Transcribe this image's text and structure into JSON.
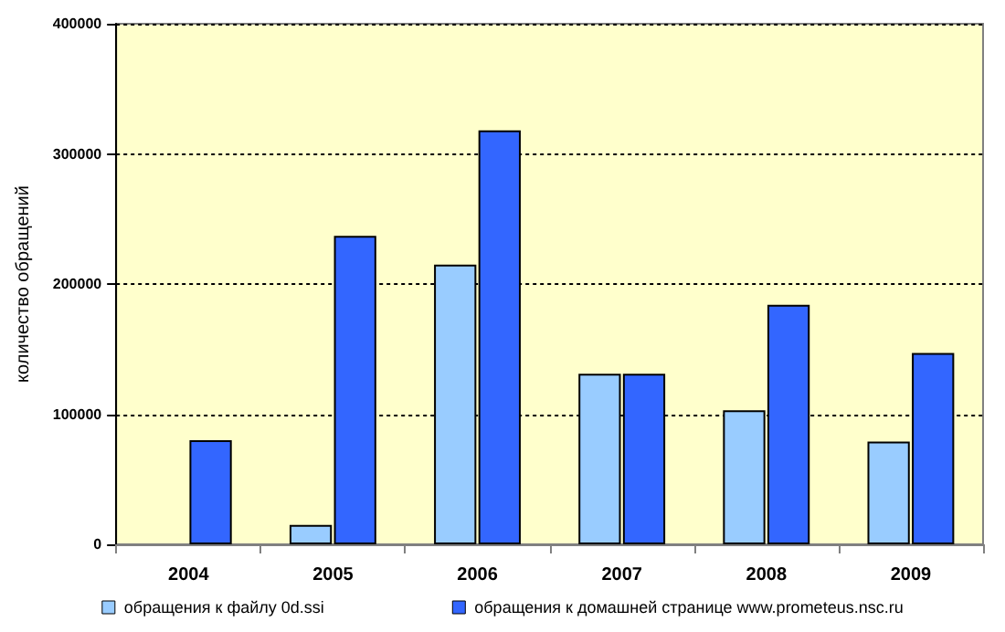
{
  "chart_data": {
    "type": "bar",
    "ylabel": "количество обращений",
    "categories": [
      "2004",
      "2005",
      "2006",
      "2007",
      "2008",
      "2009"
    ],
    "series": [
      {
        "name": "обращения к файлу 0d.ssi",
        "color": "#99ccff",
        "values": [
          null,
          15000,
          215000,
          131000,
          103000,
          79000
        ]
      },
      {
        "name": "обращения к домашней странице www.prometeus.nsc.ru",
        "color": "#3366ff",
        "values": [
          80000,
          237000,
          318000,
          131000,
          184000,
          147000
        ]
      }
    ],
    "ylim": [
      0,
      400000
    ],
    "yticks": [
      0,
      100000,
      200000,
      300000,
      400000
    ],
    "grid": "y",
    "legend": "bottom"
  }
}
